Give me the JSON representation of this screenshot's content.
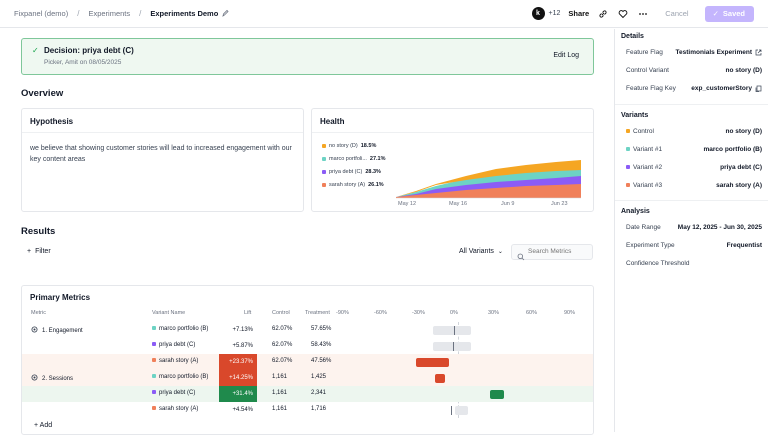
{
  "breadcrumb": {
    "project": "Fixpanel (demo)",
    "section": "Experiments",
    "current": "Experiments Demo"
  },
  "toolbar": {
    "avatar_letter": "k",
    "collaborators": "+12",
    "share": "Share",
    "cancel": "Cancel",
    "saved": "Saved"
  },
  "decision": {
    "title": "Decision: priya debt (C)",
    "subtitle": "Picker, Amit on 08/05/2025",
    "edit_log": "Edit Log"
  },
  "overview": {
    "heading": "Overview"
  },
  "hypothesis": {
    "title": "Hypothesis",
    "text": "we believe that showing customer stories will lead to increased engagement with our key content areas"
  },
  "health": {
    "title": "Health",
    "legend": [
      {
        "label": "no story (D)",
        "value": "18.5%",
        "color": "#f5a623"
      },
      {
        "label": "marco portfoli...",
        "value": "27.1%",
        "color": "#6dd3c4"
      },
      {
        "label": "priya debt (C)",
        "value": "28.3%",
        "color": "#8b5cf6"
      },
      {
        "label": "sarah story (A)",
        "value": "26.1%",
        "color": "#f0805a"
      }
    ],
    "x_ticks": [
      "May 12",
      "May 16",
      "Jun 9",
      "Jun 23"
    ]
  },
  "results": {
    "heading": "Results",
    "filter": "Filter",
    "variants_select": "All Variants",
    "search_placeholder": "Search Metrics"
  },
  "primary_metrics": {
    "title": "Primary Metrics",
    "columns": [
      "Metric",
      "Variant Name",
      "Lift",
      "Control",
      "Treatment"
    ],
    "axis_ticks": [
      "-90%",
      "-60%",
      "-30%",
      "0%",
      "30%",
      "60%",
      "90%"
    ],
    "rows": [
      {
        "metric": "1. Engagement",
        "variant": "marco portfolio (B)",
        "color": "#6dd3c4",
        "lift": "+7.13%",
        "lift_value": 7.13,
        "control": "62.07%",
        "treatment": "57.65%",
        "ci": [
          -20,
          10
        ],
        "ci_color": "#e5e7eb",
        "lift_bg": "",
        "lift_fg": "#111827"
      },
      {
        "metric": "",
        "variant": "priya debt (C)",
        "color": "#8b5cf6",
        "lift": "+5.87%",
        "lift_value": 5.87,
        "control": "62.07%",
        "treatment": "58.43%",
        "ci": [
          -20,
          10
        ],
        "ci_color": "#e5e7eb",
        "lift_bg": "",
        "lift_fg": "#111827"
      },
      {
        "metric": "",
        "variant": "sarah story (A)",
        "color": "#f0805a",
        "lift": "+23.37%",
        "lift_value": 23.37,
        "control": "62.07%",
        "treatment": "47.56%",
        "ci": [
          -33,
          -7
        ],
        "ci_color": "#d9482b",
        "lift_bg": "#d9482b",
        "lift_fg": "#ffffff",
        "row_bg": "#fdf3ee"
      },
      {
        "metric": "2. Sessions",
        "variant": "marco portfolio (B)",
        "color": "#6dd3c4",
        "lift": "+14.25%",
        "lift_value": 14.25,
        "control": "1,161",
        "treatment": "1,425",
        "ci": [
          -18,
          -10
        ],
        "ci_color": "#d9482b",
        "lift_bg": "#d9482b",
        "lift_fg": "#ffffff",
        "row_bg": "#fdf3ee"
      },
      {
        "metric": "",
        "variant": "priya debt (C)",
        "color": "#8b5cf6",
        "lift": "+31.4%",
        "lift_value": 31.4,
        "control": "1,161",
        "treatment": "2,341",
        "ci": [
          25,
          36
        ],
        "ci_color": "#1f8a4c",
        "lift_bg": "#1f8a4c",
        "lift_fg": "#ffffff",
        "row_bg": "#edf6ef"
      },
      {
        "metric": "",
        "variant": "sarah story (A)",
        "color": "#f0805a",
        "lift": "+4.54%",
        "lift_value": 4.54,
        "control": "1,161",
        "treatment": "1,716",
        "ci": [
          -2,
          8
        ],
        "ci_color": "#e5e7eb",
        "lift_bg": "",
        "lift_fg": "#111827"
      }
    ],
    "add": "Add"
  },
  "side": {
    "details_heading": "Details",
    "details": [
      {
        "label": "Feature Flag",
        "value": "Testimonials Experiment"
      },
      {
        "label": "Control Variant",
        "value": "no story (D)"
      },
      {
        "label": "Feature Flag Key",
        "value": "exp_customerStory"
      }
    ],
    "variants_heading": "Variants",
    "variants": [
      {
        "label": "Control",
        "value": "no story (D)",
        "color": "#f5a623"
      },
      {
        "label": "Variant #1",
        "value": "marco portfolio (B)",
        "color": "#6dd3c4"
      },
      {
        "label": "Variant #2",
        "value": "priya debt (C)",
        "color": "#8b5cf6"
      },
      {
        "label": "Variant #3",
        "value": "sarah story (A)",
        "color": "#f0805a"
      }
    ],
    "analysis_heading": "Analysis",
    "analysis": [
      {
        "label": "Date Range",
        "value": "May 12, 2025 - Jun 30, 2025"
      },
      {
        "label": "Experiment Type",
        "value": "Frequentist"
      },
      {
        "label": "Confidence Threshold",
        "value": ""
      }
    ]
  }
}
